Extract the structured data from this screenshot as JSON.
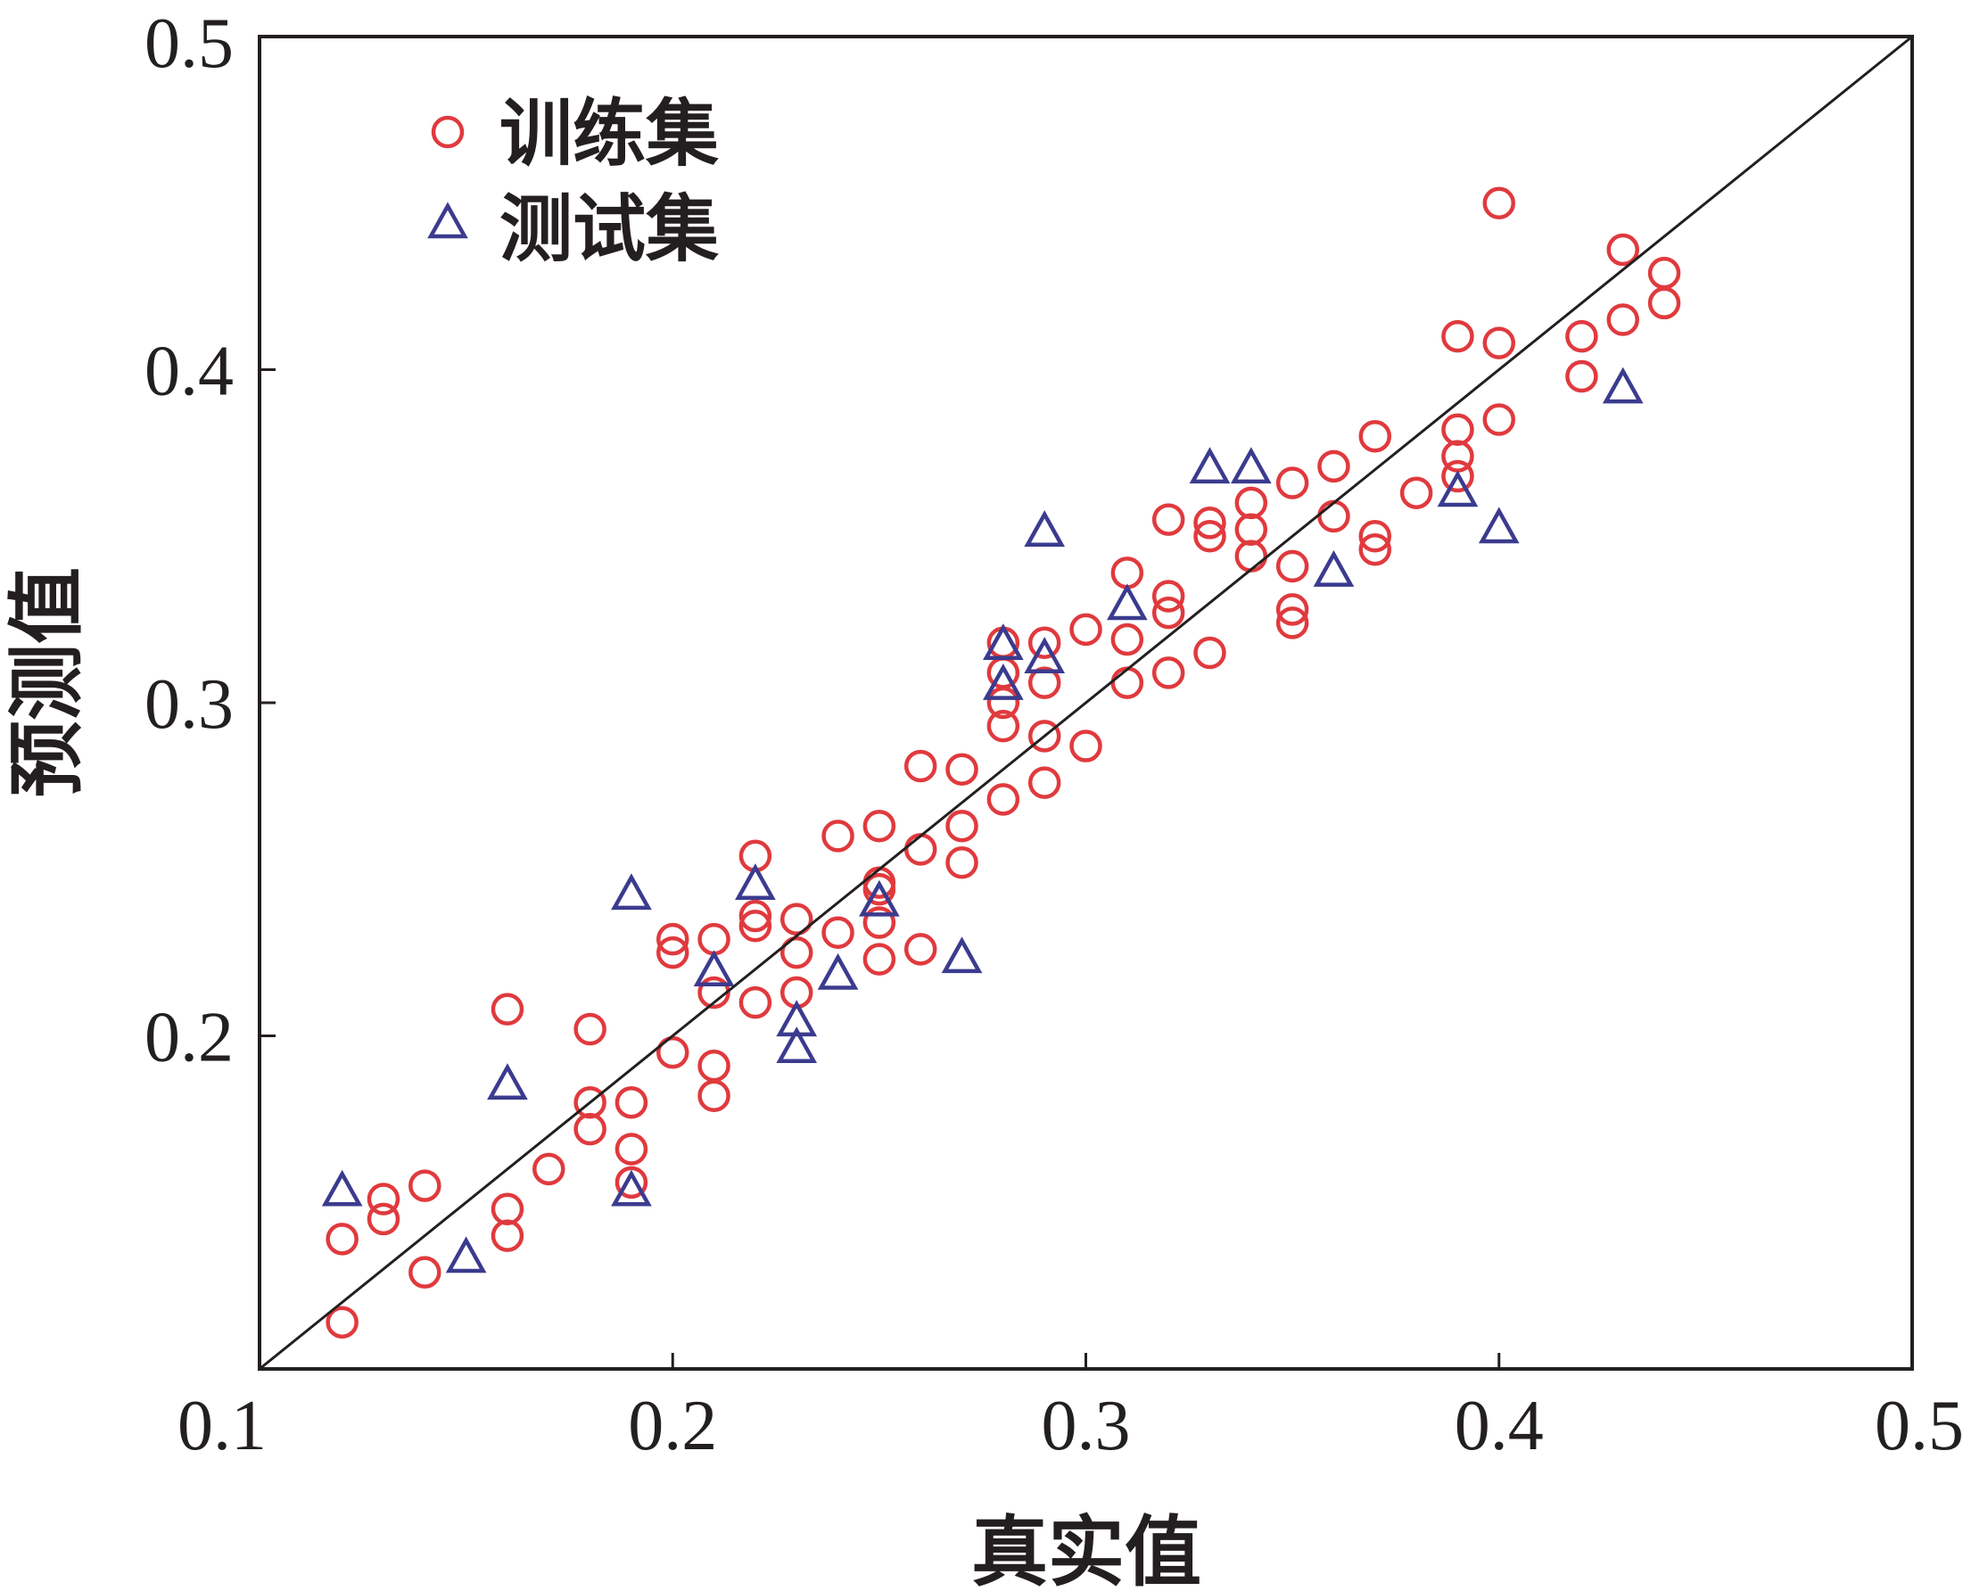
{
  "chart_data": {
    "type": "scatter",
    "title": "",
    "xlabel": "真实值",
    "ylabel": "预测值",
    "xlim": [
      0.1,
      0.5
    ],
    "ylim": [
      0.1,
      0.5
    ],
    "xticks": [
      "0.1",
      "0.2",
      "0.3",
      "0.4",
      "0.5"
    ],
    "yticks": [
      "0.2",
      "0.3",
      "0.4",
      "0.5"
    ],
    "xtick_values": [
      0.1,
      0.2,
      0.3,
      0.4,
      0.5
    ],
    "ytick_values": [
      0.2,
      0.3,
      0.4,
      0.5
    ],
    "grid": false,
    "legend_position": "top-left",
    "reference_line": {
      "name": "y=x",
      "from": [
        0.1,
        0.1
      ],
      "to": [
        0.5,
        0.5
      ]
    },
    "series": [
      {
        "name": "训练集",
        "marker": "circle",
        "color": "#e03a3e",
        "points": [
          [
            0.12,
            0.114
          ],
          [
            0.12,
            0.139
          ],
          [
            0.13,
            0.145
          ],
          [
            0.13,
            0.151
          ],
          [
            0.14,
            0.129
          ],
          [
            0.14,
            0.155
          ],
          [
            0.16,
            0.14
          ],
          [
            0.16,
            0.148
          ],
          [
            0.16,
            0.208
          ],
          [
            0.17,
            0.16
          ],
          [
            0.18,
            0.172
          ],
          [
            0.18,
            0.18
          ],
          [
            0.18,
            0.202
          ],
          [
            0.19,
            0.156
          ],
          [
            0.19,
            0.166
          ],
          [
            0.19,
            0.18
          ],
          [
            0.2,
            0.195
          ],
          [
            0.2,
            0.225
          ],
          [
            0.2,
            0.229
          ],
          [
            0.21,
            0.182
          ],
          [
            0.21,
            0.191
          ],
          [
            0.21,
            0.213
          ],
          [
            0.21,
            0.229
          ],
          [
            0.22,
            0.21
          ],
          [
            0.22,
            0.233
          ],
          [
            0.22,
            0.236
          ],
          [
            0.22,
            0.254
          ],
          [
            0.23,
            0.213
          ],
          [
            0.23,
            0.225
          ],
          [
            0.23,
            0.235
          ],
          [
            0.24,
            0.231
          ],
          [
            0.24,
            0.26
          ],
          [
            0.25,
            0.223
          ],
          [
            0.25,
            0.234
          ],
          [
            0.25,
            0.244
          ],
          [
            0.25,
            0.246
          ],
          [
            0.25,
            0.263
          ],
          [
            0.26,
            0.226
          ],
          [
            0.26,
            0.256
          ],
          [
            0.26,
            0.281
          ],
          [
            0.27,
            0.252
          ],
          [
            0.27,
            0.263
          ],
          [
            0.27,
            0.28
          ],
          [
            0.28,
            0.271
          ],
          [
            0.28,
            0.293
          ],
          [
            0.28,
            0.3
          ],
          [
            0.28,
            0.309
          ],
          [
            0.28,
            0.318
          ],
          [
            0.29,
            0.276
          ],
          [
            0.29,
            0.29
          ],
          [
            0.29,
            0.306
          ],
          [
            0.29,
            0.318
          ],
          [
            0.3,
            0.287
          ],
          [
            0.3,
            0.322
          ],
          [
            0.31,
            0.306
          ],
          [
            0.31,
            0.319
          ],
          [
            0.31,
            0.339
          ],
          [
            0.32,
            0.309
          ],
          [
            0.32,
            0.327
          ],
          [
            0.32,
            0.332
          ],
          [
            0.32,
            0.355
          ],
          [
            0.33,
            0.315
          ],
          [
            0.33,
            0.35
          ],
          [
            0.33,
            0.354
          ],
          [
            0.34,
            0.344
          ],
          [
            0.34,
            0.352
          ],
          [
            0.34,
            0.36
          ],
          [
            0.35,
            0.324
          ],
          [
            0.35,
            0.328
          ],
          [
            0.35,
            0.341
          ],
          [
            0.35,
            0.366
          ],
          [
            0.36,
            0.356
          ],
          [
            0.36,
            0.371
          ],
          [
            0.37,
            0.346
          ],
          [
            0.37,
            0.35
          ],
          [
            0.37,
            0.38
          ],
          [
            0.38,
            0.363
          ],
          [
            0.39,
            0.368
          ],
          [
            0.39,
            0.374
          ],
          [
            0.39,
            0.382
          ],
          [
            0.39,
            0.41
          ],
          [
            0.4,
            0.385
          ],
          [
            0.4,
            0.408
          ],
          [
            0.4,
            0.45
          ],
          [
            0.42,
            0.398
          ],
          [
            0.42,
            0.41
          ],
          [
            0.43,
            0.415
          ],
          [
            0.43,
            0.436
          ],
          [
            0.44,
            0.42
          ],
          [
            0.44,
            0.429
          ]
        ]
      },
      {
        "name": "测试集",
        "marker": "triangle",
        "color": "#3b3b8f",
        "points": [
          [
            0.12,
            0.154
          ],
          [
            0.15,
            0.134
          ],
          [
            0.16,
            0.186
          ],
          [
            0.19,
            0.154
          ],
          [
            0.19,
            0.243
          ],
          [
            0.21,
            0.22
          ],
          [
            0.22,
            0.246
          ],
          [
            0.23,
            0.197
          ],
          [
            0.23,
            0.205
          ],
          [
            0.24,
            0.219
          ],
          [
            0.25,
            0.241
          ],
          [
            0.27,
            0.224
          ],
          [
            0.28,
            0.306
          ],
          [
            0.28,
            0.318
          ],
          [
            0.29,
            0.314
          ],
          [
            0.29,
            0.352
          ],
          [
            0.31,
            0.33
          ],
          [
            0.33,
            0.371
          ],
          [
            0.34,
            0.371
          ],
          [
            0.36,
            0.34
          ],
          [
            0.39,
            0.364
          ],
          [
            0.4,
            0.353
          ],
          [
            0.43,
            0.395
          ]
        ]
      }
    ]
  }
}
